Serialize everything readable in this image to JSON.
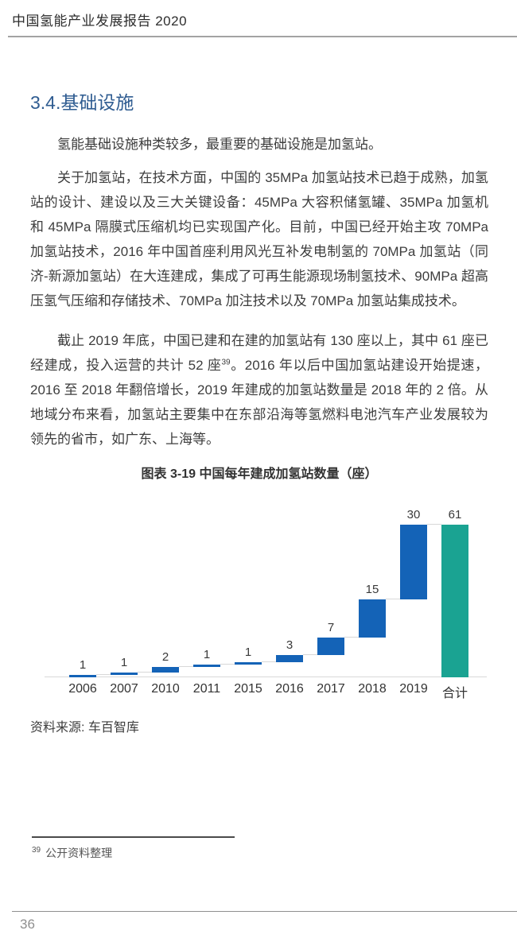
{
  "header": {
    "title": "中国氢能产业发展报告 2020"
  },
  "section": {
    "heading": "3.4.基础设施"
  },
  "paragraphs": {
    "p1": "氢能基础设施种类较多，最重要的基础设施是加氢站。",
    "p2": "关于加氢站，在技术方面，中国的 35MPa 加氢站技术已趋于成熟，加氢站的设计、建设以及三大关键设备：45MPa 大容积储氢罐、35MPa 加氢机和 45MPa 隔膜式压缩机均已实现国产化。目前，中国已经开始主攻 70MPa 加氢站技术，2016 年中国首座利用风光互补发电制氢的 70MPa 加氢站（同济-新源加氢站）在大连建成，集成了可再生能源现场制氢技术、90MPa 超高压氢气压缩和存储技术、70MPa 加注技术以及 70MPa 加氢站集成技术。",
    "p3_before": "截止 2019 年底，中国已建和在建的加氢站有 130 座以上，其中 61 座已经建成，投入运营的共计 52 座",
    "p3_sup": "39",
    "p3_after": "。2016 年以后中国加氢站建设开始提速，2016 至 2018 年翻倍增长，2019 年建成的加氢站数量是 2018 年的 2 倍。从地域分布来看，加氢站主要集中在东部沿海等氢燃料电池汽车产业发展较为领先的省市，如广东、上海等。"
  },
  "figure": {
    "title": "图表 3-19 中国每年建成加氢站数量（座）",
    "source": "资料来源: 车百智库"
  },
  "chart_data": {
    "type": "bar",
    "subtype": "waterfall",
    "title": "图表 3-19 中国每年建成加氢站数量（座）",
    "categories": [
      "2006",
      "2007",
      "2010",
      "2011",
      "2015",
      "2016",
      "2017",
      "2018",
      "2019",
      "合计"
    ],
    "values": [
      1,
      1,
      2,
      1,
      1,
      3,
      7,
      15,
      30,
      61
    ],
    "total_index": 9,
    "ylim": [
      0,
      61
    ],
    "grid": false,
    "legend": false,
    "bar_color": "#1463b7",
    "total_color": "#1aa392",
    "connector_color": "#d8d8d8"
  },
  "footnote": {
    "marker": "39",
    "text": "公开资料整理"
  },
  "footer": {
    "page_number": "36"
  }
}
